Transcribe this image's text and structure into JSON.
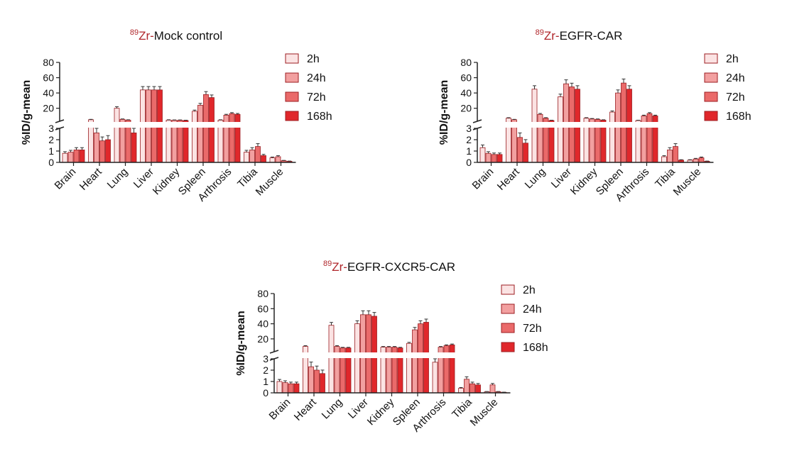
{
  "colors": {
    "series": [
      "#fbe3e3",
      "#f2a0a0",
      "#ea6a6a",
      "#e0272b"
    ],
    "edge": "#9c1e22",
    "title_prefix": "#b0262b",
    "axis": "#222222"
  },
  "chart_data": [
    {
      "type": "bar",
      "title_prefix": "89Zr-",
      "title_prefix_sup": "89",
      "title_prefix_text": "Zr-",
      "title_main": "Mock control",
      "ylabel": "%ID/g-mean",
      "y_break": true,
      "lower_ylim": [
        0,
        3
      ],
      "upper_ylim": [
        3,
        80
      ],
      "yticks_lower": [
        "0",
        "1",
        "2",
        "3"
      ],
      "yticks_upper": [
        "20",
        "40",
        "60",
        "80"
      ],
      "legend_position": "top-right",
      "categories": [
        "Brain",
        "Heart",
        "Lung",
        "Liver",
        "Kidney",
        "Spleen",
        "Arthrosis",
        "Tibia",
        "Muscle"
      ],
      "series": [
        {
          "name": "2h",
          "values": [
            0.8,
            5.0,
            20.0,
            44.0,
            4.5,
            16.0,
            4.5,
            0.9,
            0.4
          ]
        },
        {
          "name": "24h",
          "values": [
            0.9,
            2.6,
            5.5,
            44.0,
            4.3,
            24.0,
            11.0,
            1.1,
            0.5
          ]
        },
        {
          "name": "72h",
          "values": [
            1.1,
            1.9,
            4.5,
            44.0,
            4.3,
            38.0,
            13.0,
            1.4,
            0.15
          ]
        },
        {
          "name": "168h",
          "values": [
            1.1,
            2.0,
            2.6,
            44.0,
            4.0,
            34.0,
            12.0,
            0.6,
            0.1
          ]
        }
      ]
    },
    {
      "type": "bar",
      "title_prefix": "89Zr-",
      "title_prefix_sup": "89",
      "title_prefix_text": "Zr-",
      "title_main": "EGFR-CAR",
      "ylabel": "%ID/g-mean",
      "y_break": true,
      "lower_ylim": [
        0,
        3
      ],
      "upper_ylim": [
        3,
        80
      ],
      "yticks_lower": [
        "0",
        "1",
        "2",
        "3"
      ],
      "yticks_upper": [
        "20",
        "40",
        "60",
        "80"
      ],
      "legend_position": "top-right",
      "categories": [
        "Brain",
        "Heart",
        "Lung",
        "Liver",
        "Kidney",
        "Spleen",
        "Arthrosis",
        "Tibia",
        "Muscle"
      ],
      "series": [
        {
          "name": "2h",
          "values": [
            1.3,
            7.0,
            45.0,
            35.0,
            7.0,
            15.0,
            4.0,
            0.5,
            0.2
          ]
        },
        {
          "name": "24h",
          "values": [
            0.8,
            5.0,
            12.0,
            52.0,
            6.0,
            40.0,
            10.0,
            1.1,
            0.3
          ]
        },
        {
          "name": "72h",
          "values": [
            0.7,
            2.2,
            7.0,
            48.0,
            5.5,
            53.0,
            13.0,
            1.4,
            0.4
          ]
        },
        {
          "name": "168h",
          "values": [
            0.7,
            1.7,
            4.0,
            45.0,
            4.5,
            45.0,
            10.0,
            0.2,
            0.1
          ]
        }
      ]
    },
    {
      "type": "bar",
      "title_prefix": "89Zr-",
      "title_prefix_sup": "89",
      "title_prefix_text": "Zr-",
      "title_main": "EGFR-CXCR5-CAR",
      "ylabel": "%ID/g-mean",
      "y_break": true,
      "lower_ylim": [
        0,
        3
      ],
      "upper_ylim": [
        3,
        80
      ],
      "yticks_lower": [
        "0",
        "1",
        "2",
        "3"
      ],
      "yticks_upper": [
        "20",
        "40",
        "60",
        "80"
      ],
      "legend_position": "top-right",
      "categories": [
        "Brain",
        "Heart",
        "Lung",
        "Liver",
        "Kidney",
        "Spleen",
        "Arthrosis",
        "Tibia",
        "Muscle"
      ],
      "series": [
        {
          "name": "2h",
          "values": [
            1.0,
            10.0,
            38.0,
            40.0,
            9.0,
            14.0,
            2.7,
            0.4,
            0.1
          ]
        },
        {
          "name": "24h",
          "values": [
            0.9,
            2.3,
            10.0,
            52.0,
            9.0,
            32.0,
            9.0,
            1.2,
            0.7
          ]
        },
        {
          "name": "72h",
          "values": [
            0.8,
            2.0,
            8.0,
            52.0,
            9.0,
            40.0,
            11.0,
            0.8,
            0.1
          ]
        },
        {
          "name": "168h",
          "values": [
            0.8,
            1.7,
            8.0,
            50.0,
            8.0,
            42.0,
            12.0,
            0.7,
            0.05
          ]
        }
      ]
    }
  ]
}
